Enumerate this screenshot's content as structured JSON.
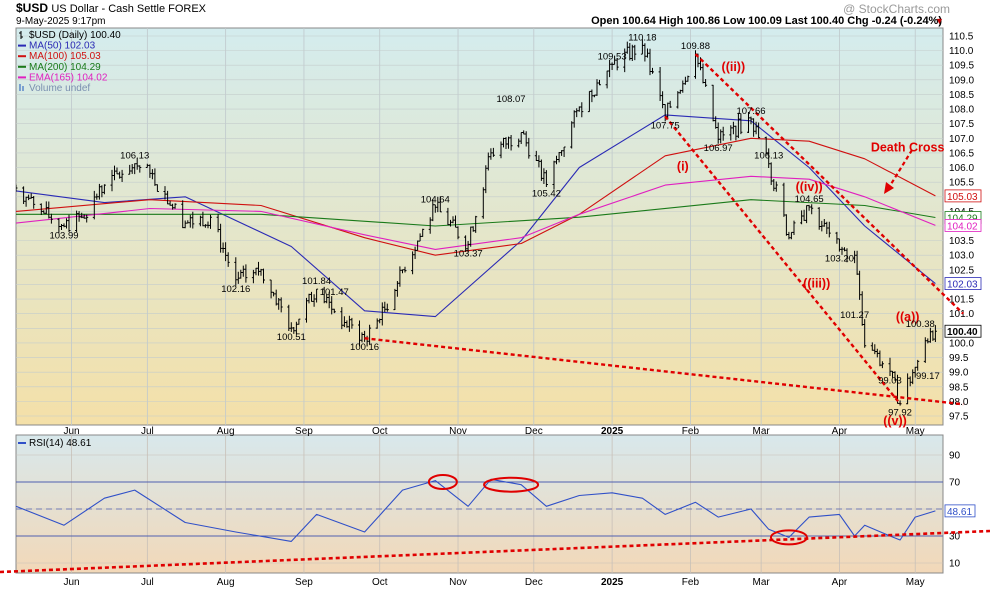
{
  "header": {
    "symbol": "$USD",
    "name": "US Dollar - Cash Settle FOREX",
    "date": "9-May-2025 9:17pm",
    "quote": "Open 100.64  High 100.86  Low 100.09  Last 100.40  Chg -0.24 (-0.24%)",
    "watermark": "@ StockCharts.com"
  },
  "legend": [
    {
      "text": "$USD (Daily) 100.40",
      "color": "#000000",
      "icon": "price-bar-icon"
    },
    {
      "text": "MA(50) 102.03",
      "color": "#2b2bb5",
      "icon": "line-swatch-icon"
    },
    {
      "text": "MA(100) 105.03",
      "color": "#d01010",
      "icon": "line-swatch-icon"
    },
    {
      "text": "MA(200) 104.29",
      "color": "#1a7a1a",
      "icon": "line-swatch-icon"
    },
    {
      "text": "EMA(165) 104.02",
      "color": "#e020c0",
      "icon": "line-swatch-icon"
    },
    {
      "text": "Volume undef",
      "color": "#7aa0d0",
      "icon": "volume-icon"
    }
  ],
  "rsi_label": "RSI(14) 48.61",
  "colors": {
    "bg_top": "#d4ecee",
    "bg_bottom": "#f4e0a8",
    "rsi_bg_top": "#d8e8ec",
    "rsi_bg_bottom": "#f2d8b8",
    "annotation_red": "#e00000",
    "rsi_line": "#3050c8"
  },
  "chart_data": [
    {
      "type": "line",
      "title": "$USD US Dollar - Cash Settle FOREX (Daily)",
      "y_scale": "linear",
      "ylim": [
        97.5,
        110.5
      ],
      "y_ticks": [
        "110.5",
        "110.0",
        "109.5",
        "109.0",
        "108.5",
        "108.0",
        "107.5",
        "107.0",
        "106.5",
        "106.0",
        "105.5",
        "105.0",
        "104.5",
        "104.0",
        "103.5",
        "103.0",
        "102.5",
        "102.0",
        "101.5",
        "101.0",
        "100.5",
        "100.0",
        "99.5",
        "99.0",
        "98.5",
        "98.0",
        "97.5"
      ],
      "x_ticks": [
        "Jun",
        "Jul",
        "Aug",
        "Sep",
        "Oct",
        "Nov",
        "Dec",
        "2025",
        "Feb",
        "Mar",
        "Apr",
        "May"
      ],
      "grid": true,
      "series": [
        {
          "name": "$USD (Daily)",
          "color": "#000000",
          "x": [
            "2024-05-10",
            "2024-05-20",
            "2024-05-29",
            "2024-06-05",
            "2024-06-14",
            "2024-06-26",
            "2024-07-02",
            "2024-07-16",
            "2024-07-26",
            "2024-08-05",
            "2024-08-15",
            "2024-08-27",
            "2024-09-06",
            "2024-09-17",
            "2024-09-25",
            "2024-10-01",
            "2024-10-10",
            "2024-10-23",
            "2024-11-05",
            "2024-11-14",
            "2024-11-26",
            "2024-12-06",
            "2024-12-19",
            "2025-01-01",
            "2025-01-13",
            "2025-01-22",
            "2025-02-03",
            "2025-02-12",
            "2025-02-25",
            "2025-03-04",
            "2025-03-12",
            "2025-03-20",
            "2025-04-01",
            "2025-04-07",
            "2025-04-11",
            "2025-04-21",
            "2025-04-25",
            "2025-05-01",
            "2025-05-07",
            "2025-05-09"
          ],
          "y": [
            105.3,
            104.5,
            103.99,
            104.3,
            105.4,
            106.13,
            105.8,
            104.1,
            104.3,
            102.16,
            102.5,
            100.51,
            101.84,
            100.7,
            100.16,
            100.8,
            102.5,
            104.64,
            103.37,
            106.5,
            107.2,
            105.42,
            108.07,
            109.53,
            110.18,
            107.75,
            109.88,
            106.97,
            107.66,
            106.13,
            103.6,
            104.65,
            103.2,
            103.0,
            99.9,
            99.03,
            97.92,
            99.17,
            100.38,
            100.4
          ]
        },
        {
          "name": "MA(50)",
          "color": "#2b2bb5",
          "x": [
            "2024-05-10",
            "2024-06-14",
            "2024-07-16",
            "2024-08-27",
            "2024-09-25",
            "2024-10-23",
            "2024-11-26",
            "2024-12-19",
            "2025-01-22",
            "2025-02-25",
            "2025-03-20",
            "2025-04-11",
            "2025-05-09"
          ],
          "y": [
            105.2,
            104.8,
            105.0,
            103.3,
            101.1,
            100.9,
            103.5,
            106.0,
            107.8,
            107.6,
            106.0,
            104.0,
            102.03
          ]
        },
        {
          "name": "MA(100)",
          "color": "#d01010",
          "x": [
            "2024-05-10",
            "2024-07-02",
            "2024-08-15",
            "2024-09-25",
            "2024-10-23",
            "2024-11-26",
            "2024-12-19",
            "2025-01-22",
            "2025-02-25",
            "2025-03-20",
            "2025-04-11",
            "2025-05-09"
          ],
          "y": [
            104.5,
            104.9,
            104.7,
            103.6,
            103.0,
            103.4,
            104.4,
            106.4,
            107.0,
            106.9,
            106.3,
            105.03
          ]
        },
        {
          "name": "MA(200)",
          "color": "#1a7a1a",
          "x": [
            "2024-05-10",
            "2024-08-15",
            "2024-10-23",
            "2024-12-19",
            "2025-02-25",
            "2025-04-11",
            "2025-05-09"
          ],
          "y": [
            104.4,
            104.4,
            104.0,
            104.3,
            104.9,
            104.7,
            104.29
          ]
        },
        {
          "name": "EMA(165)",
          "color": "#e020c0",
          "x": [
            "2024-05-10",
            "2024-07-02",
            "2024-08-15",
            "2024-09-25",
            "2024-10-23",
            "2024-11-26",
            "2024-12-19",
            "2025-01-22",
            "2025-02-25",
            "2025-03-20",
            "2025-04-11",
            "2025-05-09"
          ],
          "y": [
            104.1,
            104.6,
            104.5,
            103.7,
            103.2,
            103.6,
            104.4,
            105.4,
            105.7,
            105.6,
            105.0,
            104.02
          ]
        }
      ],
      "data_labels": [
        {
          "x": "2024-05-29",
          "y": 103.99,
          "text": "103.99"
        },
        {
          "x": "2024-06-26",
          "y": 106.13,
          "text": "106.13"
        },
        {
          "x": "2024-08-05",
          "y": 102.16,
          "text": "102.16"
        },
        {
          "x": "2024-08-27",
          "y": 100.51,
          "text": "100.51"
        },
        {
          "x": "2024-09-06",
          "y": 101.84,
          "text": "101.84"
        },
        {
          "x": "2024-09-13",
          "y": 101.47,
          "text": "101.47"
        },
        {
          "x": "2024-09-25",
          "y": 100.16,
          "text": "100.16"
        },
        {
          "x": "2024-10-23",
          "y": 104.64,
          "text": "104.64"
        },
        {
          "x": "2024-11-05",
          "y": 103.37,
          "text": "103.37"
        },
        {
          "x": "2024-11-22",
          "y": 108.07,
          "text": "108.07"
        },
        {
          "x": "2024-12-06",
          "y": 105.42,
          "text": "105.42"
        },
        {
          "x": "2025-01-01",
          "y": 109.53,
          "text": "109.53"
        },
        {
          "x": "2025-01-13",
          "y": 110.18,
          "text": "110.18"
        },
        {
          "x": "2025-01-22",
          "y": 107.75,
          "text": "107.75"
        },
        {
          "x": "2025-02-03",
          "y": 109.88,
          "text": "109.88"
        },
        {
          "x": "2025-02-12",
          "y": 106.97,
          "text": "106.97"
        },
        {
          "x": "2025-02-25",
          "y": 107.66,
          "text": "107.66"
        },
        {
          "x": "2025-03-04",
          "y": 106.13,
          "text": "106.13"
        },
        {
          "x": "2025-03-20",
          "y": 104.65,
          "text": "104.65"
        },
        {
          "x": "2025-04-01",
          "y": 103.2,
          "text": "103.20"
        },
        {
          "x": "2025-04-07",
          "y": 101.27,
          "text": "101.27"
        },
        {
          "x": "2025-04-21",
          "y": 99.03,
          "text": "99.03"
        },
        {
          "x": "2025-04-25",
          "y": 97.92,
          "text": "97.92"
        },
        {
          "x": "2025-05-03",
          "y": 100.38,
          "text": "100.38"
        },
        {
          "x": "2025-05-06",
          "y": 99.17,
          "text": "99.17"
        }
      ],
      "annotations": [
        "((ii))",
        "(i)",
        "((iv))",
        "((iii))",
        "((v))",
        "((a))",
        "Death Cross"
      ],
      "right_tags": [
        {
          "text": "105.03",
          "color": "#d01010",
          "y": 105.03
        },
        {
          "text": "104.29",
          "color": "#1a7a1a",
          "y": 104.29
        },
        {
          "text": "104.02",
          "color": "#e020c0",
          "y": 104.02
        },
        {
          "text": "102.03",
          "color": "#2b2bb5",
          "y": 102.03
        },
        {
          "text": "100.40",
          "color": "#000000",
          "y": 100.4
        }
      ]
    },
    {
      "type": "line",
      "title": "RSI(14) 48.61",
      "ylim": [
        0,
        100
      ],
      "y_ticks": [
        "90",
        "70",
        "50",
        "30",
        "10"
      ],
      "reference_lines": [
        70,
        30
      ],
      "series": [
        {
          "name": "RSI(14)",
          "color": "#3050c8",
          "x": [
            "2024-05-10",
            "2024-05-29",
            "2024-06-14",
            "2024-06-26",
            "2024-07-16",
            "2024-08-05",
            "2024-08-27",
            "2024-09-06",
            "2024-09-25",
            "2024-10-10",
            "2024-10-23",
            "2024-11-05",
            "2024-11-14",
            "2024-11-26",
            "2024-12-06",
            "2024-12-19",
            "2025-01-01",
            "2025-01-13",
            "2025-01-22",
            "2025-02-03",
            "2025-02-12",
            "2025-02-25",
            "2025-03-04",
            "2025-03-12",
            "2025-03-20",
            "2025-04-01",
            "2025-04-07",
            "2025-04-11",
            "2025-04-21",
            "2025-04-25",
            "2025-05-01",
            "2025-05-09"
          ],
          "y": [
            52,
            38,
            58,
            64,
            40,
            33,
            26,
            46,
            33,
            64,
            71,
            52,
            72,
            68,
            52,
            60,
            62,
            58,
            46,
            55,
            44,
            50,
            35,
            29,
            44,
            46,
            30,
            38,
            30,
            27,
            44,
            48.61
          ]
        }
      ],
      "current_value_tag": "48.61"
    }
  ]
}
